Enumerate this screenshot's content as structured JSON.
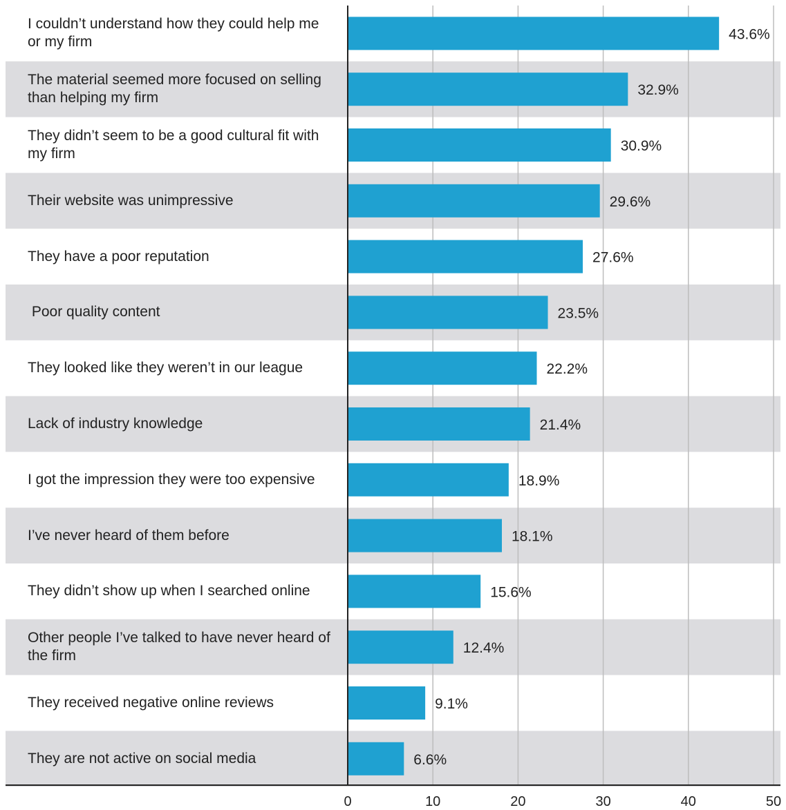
{
  "chart_data": {
    "type": "bar",
    "orientation": "horizontal",
    "categories": [
      "I couldn’t understand how they could help me or my firm",
      "The material seemed more focused on selling than helping my firm",
      "They didn’t seem to be a good cultural fit with my firm",
      "Their website was unimpressive",
      "They have a poor reputation",
      " Poor quality content",
      "They looked like they weren’t in our league",
      "Lack of industry knowledge",
      "I got the impression they were too expensive",
      "I’ve never heard of them before",
      "They didn’t show up when I searched online",
      "Other people I’ve talked to have never heard of the firm",
      "They received negative online reviews",
      "They are not active on social media"
    ],
    "values": [
      43.6,
      32.9,
      30.9,
      29.6,
      27.6,
      23.5,
      22.2,
      21.4,
      18.9,
      18.1,
      15.6,
      12.4,
      9.1,
      6.6
    ],
    "value_labels": [
      "43.6%",
      "32.9%",
      "30.9%",
      "29.6%",
      "27.6%",
      "23.5%",
      "22.2%",
      "21.4%",
      "18.9%",
      "18.1%",
      "15.6%",
      "12.4%",
      "9.1%",
      "6.6%"
    ],
    "xlim": [
      0,
      50
    ],
    "xticks": [
      "0",
      "10",
      "20",
      "30",
      "40",
      "50"
    ],
    "grid": true,
    "bar_color": "#1fa1d1",
    "band_color": "#dcdcdf",
    "title": "",
    "xlabel": "",
    "ylabel": ""
  }
}
